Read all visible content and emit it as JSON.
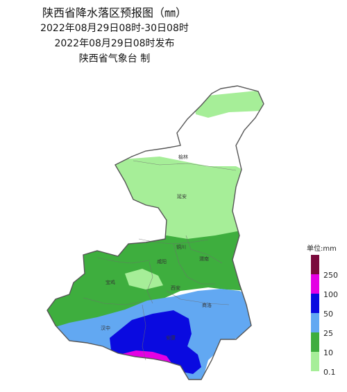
{
  "header": {
    "title": "陕西省降水落区预报图（㎜）",
    "period": "2022年08月29日08时-30日08时",
    "issued": "2022年08月29日08时发布",
    "agency": "陕西省气象台  制"
  },
  "map": {
    "cities": [
      "榆林",
      "延安",
      "铜川",
      "渭南",
      "咸阳",
      "西安",
      "宝鸡",
      "商洛",
      "汉中",
      "安康"
    ]
  },
  "legend": {
    "title": "单位:mm",
    "labels": [
      "250",
      "100",
      "50",
      "25",
      "10",
      "0.1"
    ],
    "colors": {
      "over_250": "#7a0a3c",
      "r100_250": "#e400e4",
      "r50_100": "#0a0ae0",
      "r25_50": "#62a8f2",
      "r10_25": "#3eae3e",
      "r0_1_10": "#a6ee98",
      "no_rain": "#ffffff"
    }
  }
}
